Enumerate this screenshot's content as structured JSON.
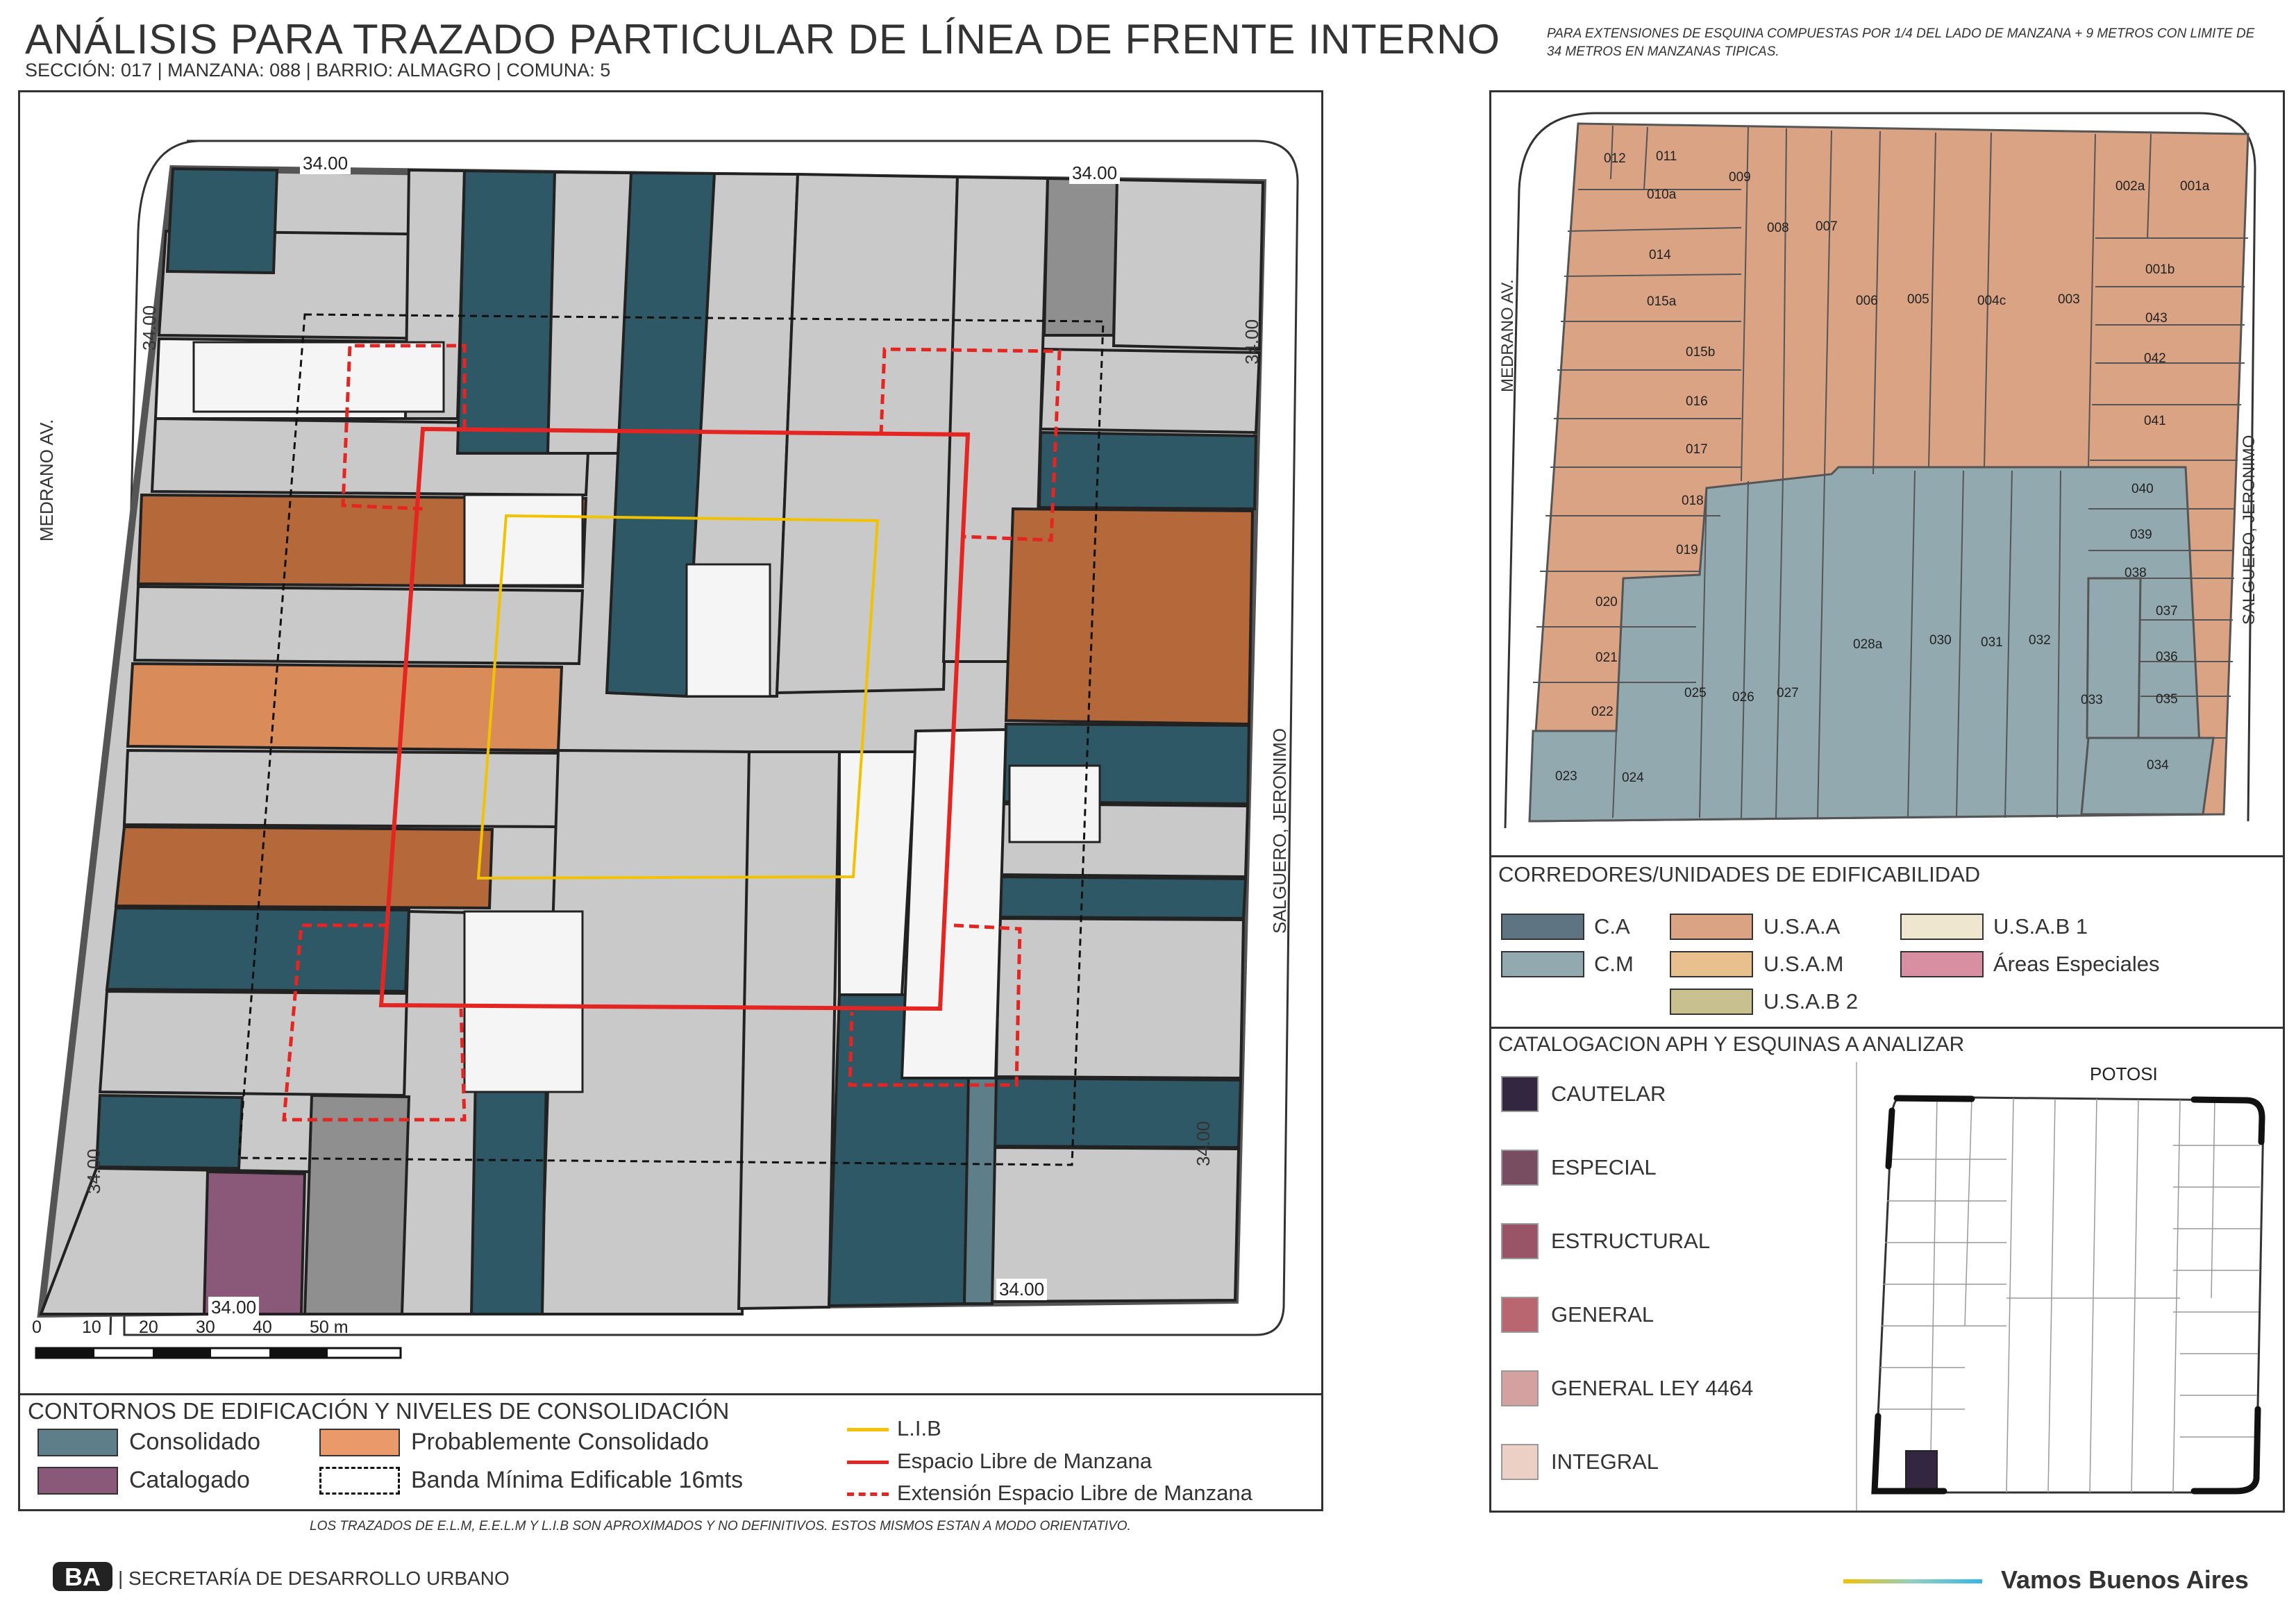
{
  "header": {
    "title": "ANÁLISIS PARA TRAZADO PARTICULAR DE LÍNEA DE FRENTE INTERNO",
    "subtitle": "SECCIÓN: 017 |  MANZANA: 088 | BARRIO: ALMAGRO | COMUNA: 5",
    "note": "PARA EXTENSIONES DE ESQUINA COMPUESTAS POR 1/4 DEL LADO DE MANZANA + 9 METROS CON LIMITE DE 34 METROS EN MANZANAS TIPICAS."
  },
  "colors": {
    "consolidado": "#2f5866",
    "consolidado_light": "#5e7f8a",
    "catalogado": "#8a5878",
    "prob_consolidado": "#b5683a",
    "prob_consolidado_light": "#d98c5a",
    "gray": "#c9c9c9",
    "lib": "#f2c200",
    "elm": "#e52521",
    "ca": "#5e7482",
    "cm": "#93a9b0",
    "usaa": "#d9a384",
    "usam": "#e8c08e",
    "usab2": "#c8c08e",
    "usab1": "#eee6cf",
    "areas_especiales": "#d98fa2",
    "cautelar": "#322641",
    "especial": "#784d62",
    "estructural": "#9a5468",
    "general": "#b96670",
    "general_ley": "#d4a0a0",
    "integral": "#ecd0c6"
  },
  "main_map": {
    "street_left": "MEDRANO AV.",
    "street_right": "SALGUERO, JERONIMO",
    "dim_label": "34.00",
    "scale_labels": [
      "0",
      "10",
      "20",
      "30",
      "40",
      "50 m"
    ]
  },
  "legend_main": {
    "title": "CONTORNOS DE EDIFICACIÓN Y NIVELES DE CONSOLIDACIÓN",
    "consolidado": "Consolidado",
    "catalogado": "Catalogado",
    "prob_consolidado": "Probablemente Consolidado",
    "banda": "Banda Mínima Edificable 16mts",
    "lib": "L.I.B",
    "elm": "Espacio Libre de Manzana",
    "eelm": "Extensión Espacio Libre de Manzana"
  },
  "disclaimer": "LOS TRAZADOS DE E.L.M, E.E.L.M Y L.I.B SON APROXIMADOS Y NO DEFINITIVOS. ESTOS MISMOS ESTAN A MODO ORIENTATIVO.",
  "parcel_map": {
    "street_left": "MEDRANO AV.",
    "street_right": "SALGUERO, JERONIMO",
    "parcels": [
      "012",
      "011",
      "010a",
      "009",
      "008",
      "007",
      "006",
      "005",
      "004c",
      "003",
      "002a",
      "001a",
      "014",
      "015a",
      "015b",
      "016",
      "017",
      "018",
      "019",
      "001b",
      "043",
      "042",
      "041",
      "040",
      "039",
      "038",
      "037",
      "036",
      "035",
      "034",
      "033",
      "032",
      "031",
      "030",
      "028a",
      "027",
      "026",
      "025",
      "024",
      "023",
      "022",
      "021",
      "020"
    ]
  },
  "legend_corredores": {
    "title": "CORREDORES/UNIDADES DE EDIFICABILIDAD",
    "items": [
      "C.A",
      "U.S.A.A",
      "U.S.A.B 1",
      "C.M",
      "U.S.A.M",
      "Áreas Especiales",
      "U.S.A.B 2"
    ]
  },
  "legend_aph": {
    "title": "CATALOGACION APH Y ESQUINAS A ANALIZAR",
    "items": [
      "CAUTELAR",
      "ESPECIAL",
      "ESTRUCTURAL",
      "GENERAL",
      "GENERAL LEY 4464",
      "INTEGRAL"
    ],
    "inset_street": "POTOSI"
  },
  "footer": {
    "org": "| SECRETARÍA DE DESARROLLO URBANO",
    "logo": "BA",
    "brand": "Vamos Buenos Aires"
  }
}
